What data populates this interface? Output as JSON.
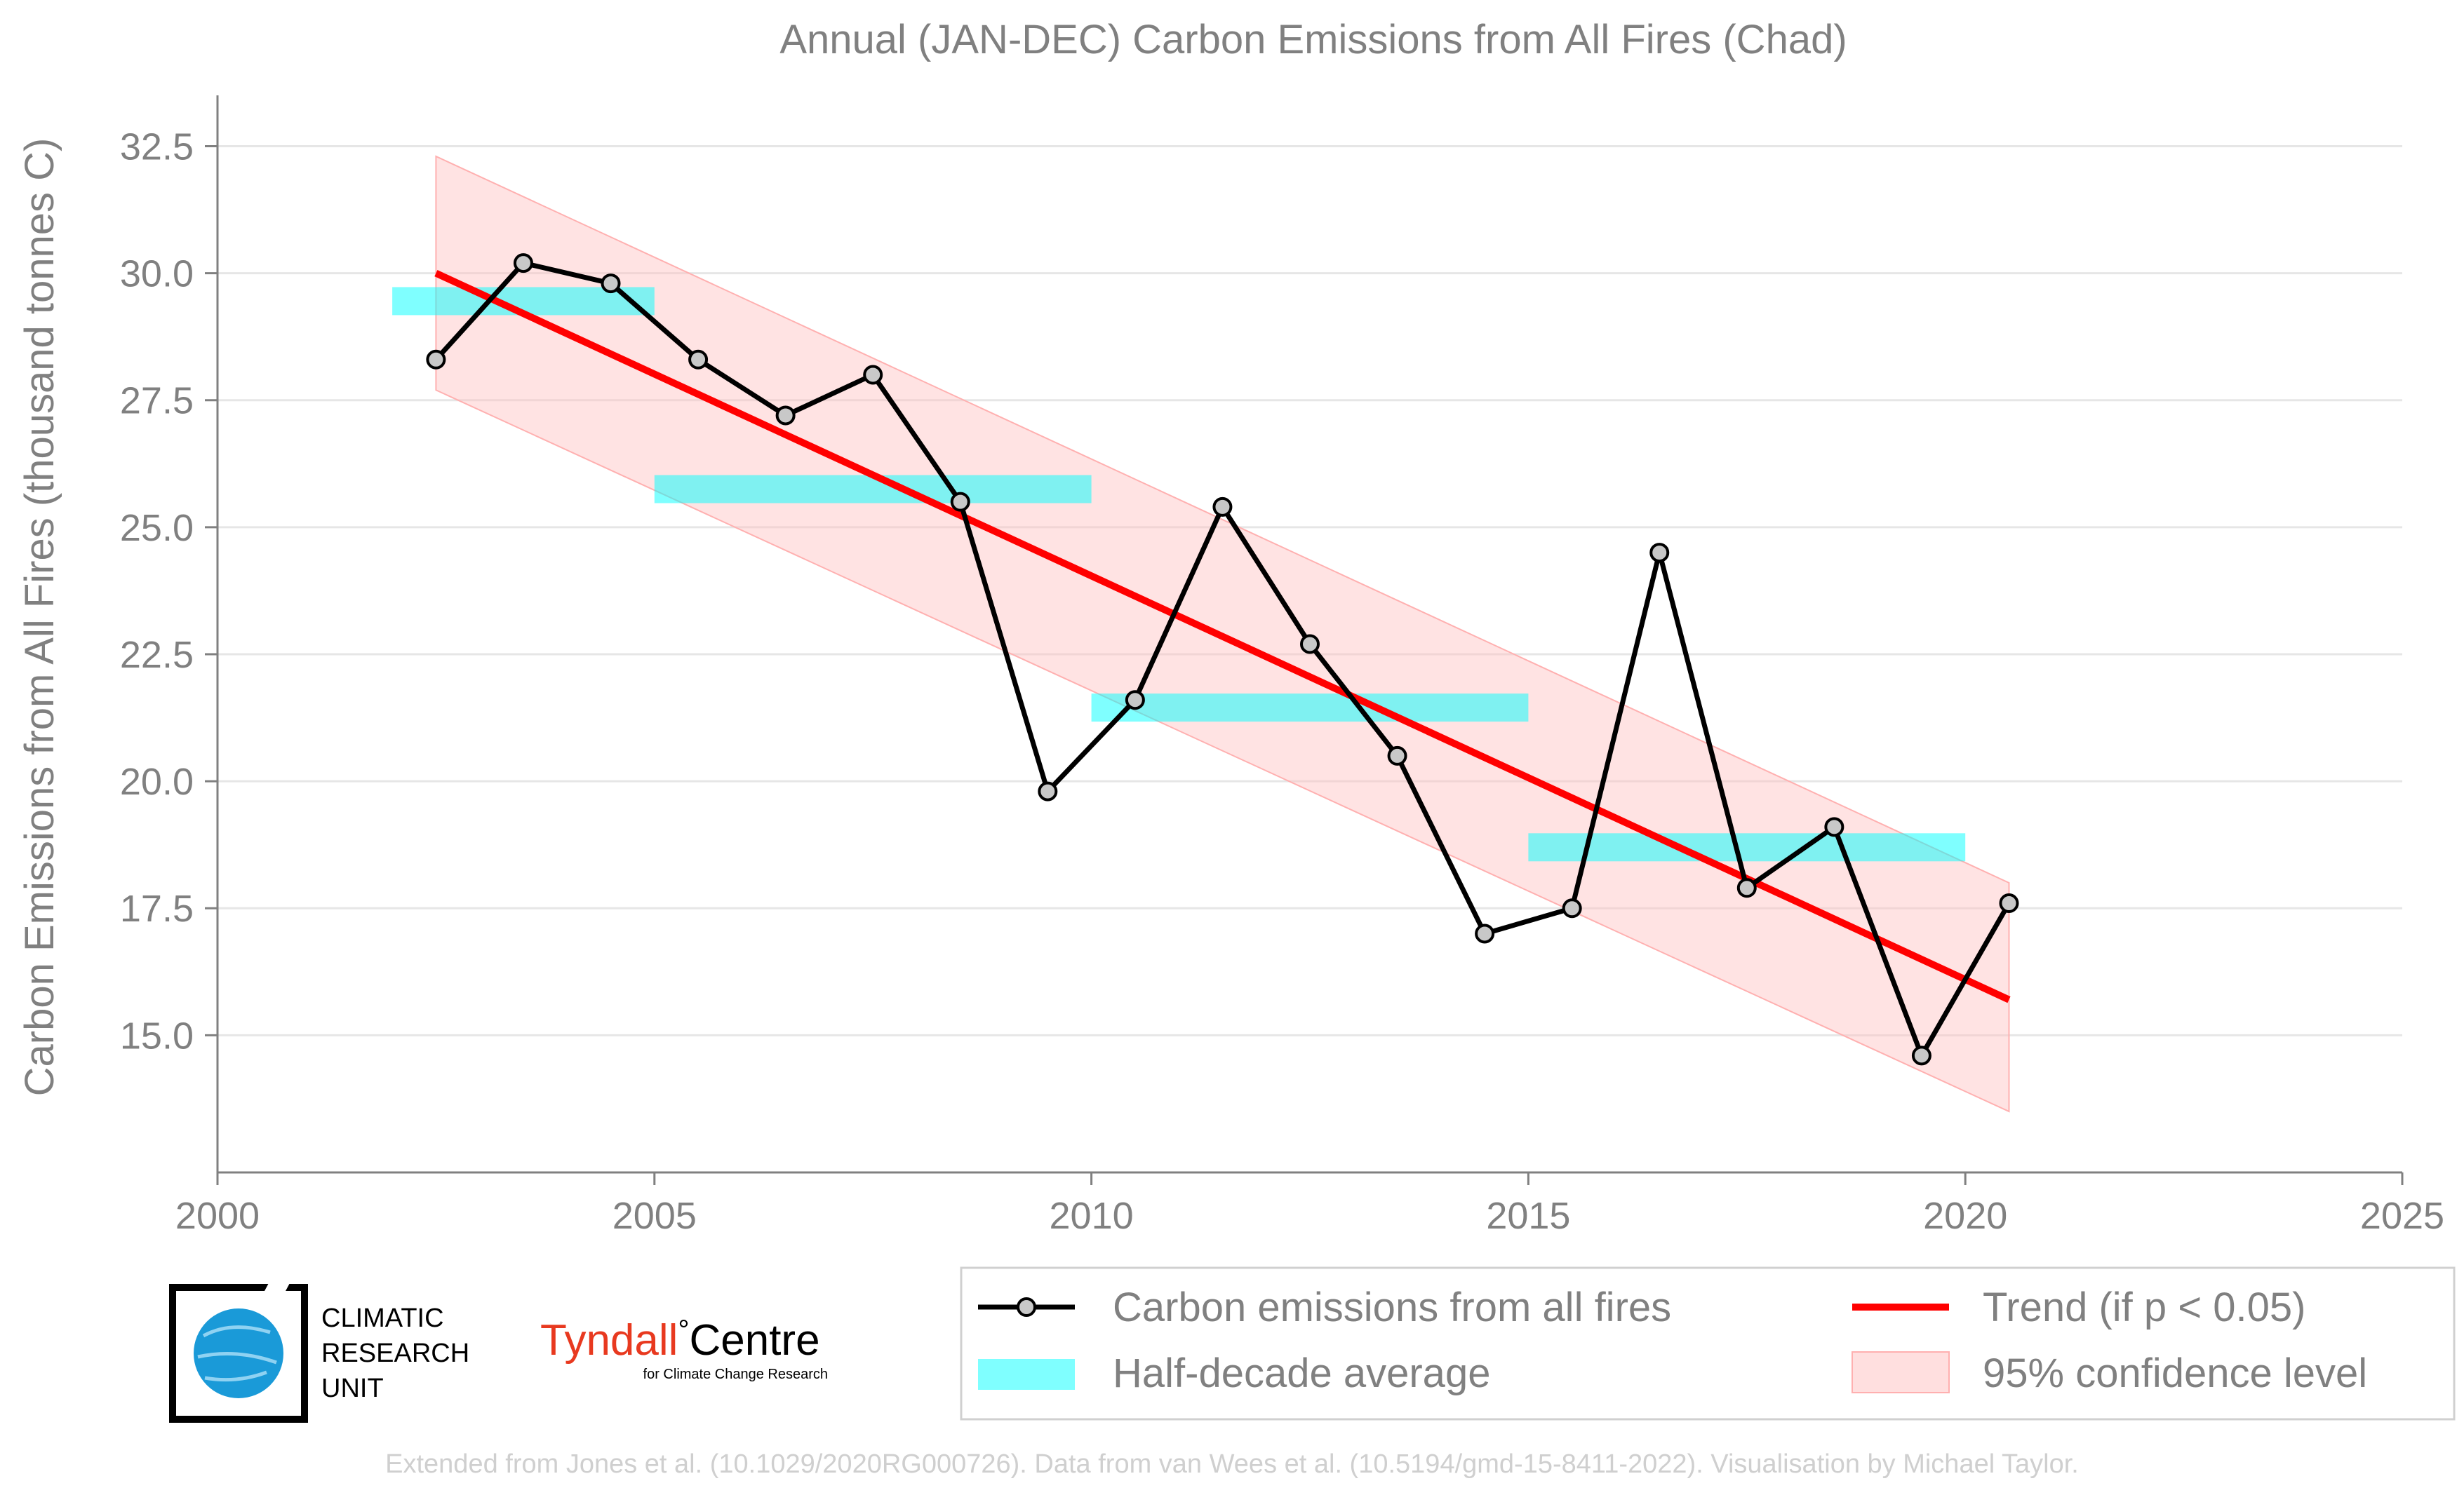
{
  "chart_data": {
    "type": "line",
    "title": "Annual (JAN-DEC) Carbon Emissions from All Fires (Chad)",
    "xlabel": "",
    "ylabel": "Carbon Emissions from All Fires (thousand tonnes C)",
    "xlim": [
      2000,
      2025
    ],
    "ylim": [
      12.3,
      33.5
    ],
    "xticks": [
      "2000",
      "2005",
      "2010",
      "2015",
      "2020",
      "2025"
    ],
    "yticks": [
      "15.0",
      "17.5",
      "20.0",
      "22.5",
      "25.0",
      "27.5",
      "30.0",
      "32.5"
    ],
    "grid": "horizontal",
    "series": [
      {
        "name": "Carbon emissions from all fires",
        "color": "#000000",
        "x": [
          2002.5,
          2003.5,
          2004.5,
          2005.5,
          2006.5,
          2007.5,
          2008.5,
          2009.5,
          2010.5,
          2011.5,
          2012.5,
          2013.5,
          2014.5,
          2015.5,
          2016.5,
          2017.5,
          2018.5,
          2019.5,
          2020.5
        ],
        "values": [
          28.3,
          30.2,
          29.8,
          28.3,
          27.2,
          28.0,
          25.5,
          19.8,
          21.6,
          25.4,
          22.7,
          20.5,
          17.0,
          17.5,
          24.5,
          17.9,
          19.1,
          14.6,
          17.6
        ]
      }
    ],
    "half_decade_average": {
      "name": "Half-decade average",
      "color": "#00ffff",
      "segments": [
        {
          "x0": 2002,
          "x1": 2005,
          "value": 29.45
        },
        {
          "x0": 2005,
          "x1": 2010,
          "value": 25.75
        },
        {
          "x0": 2010,
          "x1": 2015,
          "value": 21.45
        },
        {
          "x0": 2015,
          "x1": 2020,
          "value": 18.7
        }
      ]
    },
    "trend": {
      "name": "Trend (if p < 0.05)",
      "color": "#ff0000",
      "x": [
        2002.5,
        2020.5
      ],
      "values": [
        30.0,
        15.7
      ]
    },
    "confidence": {
      "name": "95% confidence level",
      "color": "#ffc0c0",
      "x": [
        2002.5,
        2020.5
      ],
      "upper": [
        32.3,
        18.0
      ],
      "lower": [
        27.7,
        13.5
      ]
    },
    "legend_position": "bottom-right"
  },
  "logos": {
    "cru_text": [
      "CLIMATIC",
      "RESEARCH",
      "UNIT"
    ],
    "tyndall_name": "Tyndall",
    "tyndall_degree": "°",
    "tyndall_centre": "Centre",
    "tyndall_sub": "for Climate Change Research"
  },
  "credit": "Extended from Jones et al. (10.1029/2020RG000726). Data from van Wees et al. (10.5194/gmd-15-8411-2022). Visualisation by Michael Taylor."
}
